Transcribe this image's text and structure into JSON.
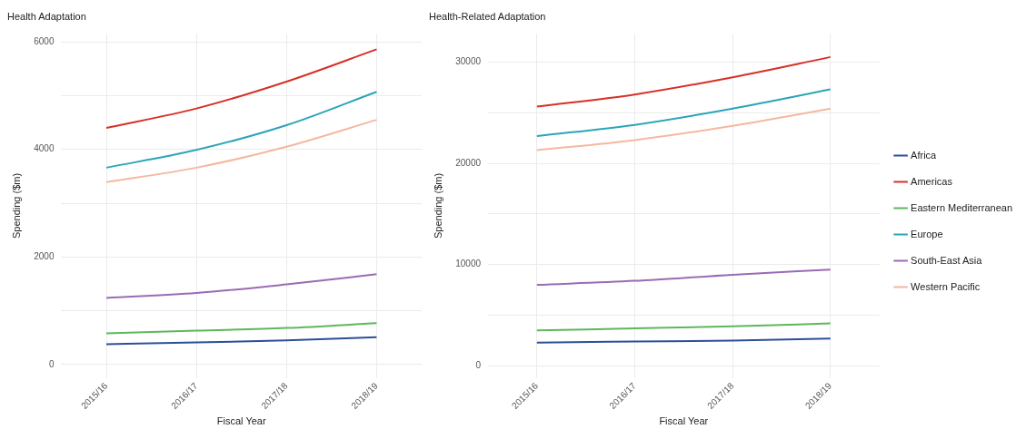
{
  "chart_data": [
    {
      "type": "line",
      "title": "Health Adaptation",
      "xlabel": "Fiscal Year",
      "ylabel": "Spending ($m)",
      "categories": [
        "2015/16",
        "2016/17",
        "2017/18",
        "2018/19"
      ],
      "ylim": [
        -250,
        6150
      ],
      "yticks": [
        0,
        {
          "value": 1000,
          "label": null
        },
        2000,
        {
          "value": 3000,
          "label": null
        },
        4000,
        {
          "value": 5000,
          "label": null
        },
        6000
      ],
      "grid": true,
      "legend": false,
      "series": [
        {
          "color": "#2c4f9a",
          "values": [
            380,
            410,
            450,
            510
          ]
        },
        {
          "color": "#d73027",
          "values": [
            4400,
            4760,
            5260,
            5860
          ]
        },
        {
          "color": "#5cb85c",
          "values": [
            580,
            630,
            680,
            770
          ]
        },
        {
          "color": "#2ba5b8",
          "values": [
            3660,
            3990,
            4450,
            5070
          ]
        },
        {
          "color": "#9a6bb5",
          "values": [
            1240,
            1330,
            1490,
            1680
          ]
        },
        {
          "color": "#f4b8a0",
          "values": [
            3390,
            3660,
            4050,
            4550
          ]
        }
      ]
    },
    {
      "type": "line",
      "title": "Health-Related Adaptation",
      "xlabel": "Fiscal Year",
      "ylabel": "Spending ($m)",
      "categories": [
        "2015/16",
        "2016/17",
        "2017/18",
        "2018/19"
      ],
      "ylim": [
        -1200,
        32800
      ],
      "yticks": [
        0,
        {
          "value": 5000,
          "label": null
        },
        10000,
        {
          "value": 15000,
          "label": null
        },
        20000,
        {
          "value": 25000,
          "label": null
        },
        30000
      ],
      "grid": true,
      "legend": "right",
      "series": [
        {
          "name": "Africa",
          "color": "#2c4f9a",
          "values": [
            2300,
            2400,
            2500,
            2700
          ]
        },
        {
          "name": "Americas",
          "color": "#d73027",
          "values": [
            25600,
            26800,
            28500,
            30500
          ]
        },
        {
          "name": "Eastern Mediterranean",
          "color": "#5cb85c",
          "values": [
            3500,
            3700,
            3900,
            4200
          ]
        },
        {
          "name": "Europe",
          "color": "#2ba5b8",
          "values": [
            22700,
            23800,
            25400,
            27300
          ]
        },
        {
          "name": "South-East Asia",
          "color": "#9a6bb5",
          "values": [
            8000,
            8400,
            9000,
            9500
          ]
        },
        {
          "name": "Western Pacific",
          "color": "#f4b8a0",
          "values": [
            21300,
            22300,
            23700,
            25400
          ]
        }
      ]
    }
  ]
}
